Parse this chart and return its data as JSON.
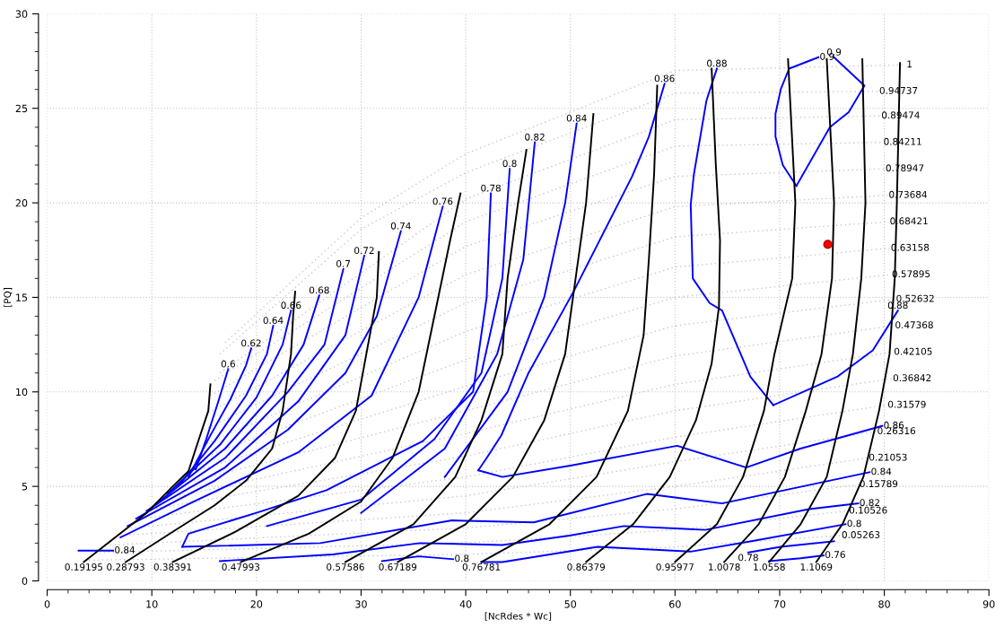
{
  "chart_data": {
    "type": "line",
    "xlabel": "[NcRdes * Wc]",
    "ylabel": "[PQ]",
    "xlim": [
      0,
      90
    ],
    "ylim": [
      0,
      30
    ],
    "xticks": [
      0,
      {
        "value": 2,
        "label": null
      },
      {
        "value": 4,
        "label": null
      },
      {
        "value": 6,
        "label": null
      },
      {
        "value": 8,
        "label": null
      },
      10,
      {
        "value": 12,
        "label": null
      },
      {
        "value": 14,
        "label": null
      },
      {
        "value": 16,
        "label": null
      },
      {
        "value": 18,
        "label": null
      },
      20,
      {
        "value": 22,
        "label": null
      },
      {
        "value": 24,
        "label": null
      },
      {
        "value": 26,
        "label": null
      },
      {
        "value": 28,
        "label": null
      },
      30,
      {
        "value": 32,
        "label": null
      },
      {
        "value": 34,
        "label": null
      },
      {
        "value": 36,
        "label": null
      },
      {
        "value": 38,
        "label": null
      },
      40,
      {
        "value": 42,
        "label": null
      },
      {
        "value": 44,
        "label": null
      },
      {
        "value": 46,
        "label": null
      },
      {
        "value": 48,
        "label": null
      },
      50,
      {
        "value": 52,
        "label": null
      },
      {
        "value": 54,
        "label": null
      },
      {
        "value": 56,
        "label": null
      },
      {
        "value": 58,
        "label": null
      },
      60,
      {
        "value": 62,
        "label": null
      },
      {
        "value": 64,
        "label": null
      },
      {
        "value": 66,
        "label": null
      },
      {
        "value": 68,
        "label": null
      },
      70,
      {
        "value": 72,
        "label": null
      },
      {
        "value": 74,
        "label": null
      },
      {
        "value": 76,
        "label": null
      },
      {
        "value": 78,
        "label": null
      },
      80,
      {
        "value": 82,
        "label": null
      },
      {
        "value": 84,
        "label": null
      },
      {
        "value": 86,
        "label": null
      },
      {
        "value": 88,
        "label": null
      },
      90
    ],
    "yticks": [
      0,
      {
        "value": 1,
        "label": null
      },
      {
        "value": 2,
        "label": null
      },
      {
        "value": 3,
        "label": null
      },
      {
        "value": 4,
        "label": null
      },
      5,
      {
        "value": 6,
        "label": null
      },
      {
        "value": 7,
        "label": null
      },
      {
        "value": 8,
        "label": null
      },
      {
        "value": 9,
        "label": null
      },
      10,
      {
        "value": 11,
        "label": null
      },
      {
        "value": 12,
        "label": null
      },
      {
        "value": 13,
        "label": null
      },
      {
        "value": 14,
        "label": null
      },
      15,
      {
        "value": 16,
        "label": null
      },
      {
        "value": 17,
        "label": null
      },
      {
        "value": 18,
        "label": null
      },
      {
        "value": 19,
        "label": null
      },
      20,
      {
        "value": 21,
        "label": null
      },
      {
        "value": 22,
        "label": null
      },
      {
        "value": 23,
        "label": null
      },
      {
        "value": 24,
        "label": null
      },
      25,
      {
        "value": 26,
        "label": null
      },
      {
        "value": 27,
        "label": null
      },
      {
        "value": 28,
        "label": null
      },
      {
        "value": 29,
        "label": null
      },
      30
    ],
    "grid": true,
    "marker": "none",
    "series": [
      {
        "name": "0.05263",
        "color": "#c8c8c8",
        "line_style": "dotted",
        "x": [
          4,
          40,
          60,
          75.8
        ],
        "values": [
          1.1,
          1.4,
          1.8,
          2.4
        ]
      },
      {
        "name": "0.10526",
        "color": "#c8c8c8",
        "line_style": "dotted",
        "x": [
          5,
          40,
          60,
          76.5
        ],
        "values": [
          1.5,
          2.0,
          2.7,
          3.7
        ]
      },
      {
        "name": "0.15789",
        "color": "#c8c8c8",
        "line_style": "dotted",
        "x": [
          6,
          40,
          60,
          77.5
        ],
        "values": [
          1.9,
          2.8,
          3.8,
          5.1
        ]
      },
      {
        "name": "0.21053",
        "color": "#c8c8c8",
        "line_style": "dotted",
        "x": [
          7,
          40,
          60,
          78.4
        ],
        "values": [
          2.4,
          3.6,
          5.0,
          6.5
        ]
      },
      {
        "name": "0.26316",
        "color": "#c8c8c8",
        "line_style": "dotted",
        "x": [
          8,
          40,
          60,
          79.2
        ],
        "values": [
          2.8,
          4.5,
          6.3,
          7.9
        ]
      },
      {
        "name": "0.31579",
        "color": "#c8c8c8",
        "line_style": "dotted",
        "x": [
          9,
          40,
          60,
          80.2
        ],
        "values": [
          3.3,
          5.5,
          7.6,
          9.3
        ]
      },
      {
        "name": "0.36842",
        "color": "#c8c8c8",
        "line_style": "dotted",
        "x": [
          10,
          40,
          60,
          80.7
        ],
        "values": [
          3.8,
          6.6,
          9.0,
          10.7
        ]
      },
      {
        "name": "0.42105",
        "color": "#c8c8c8",
        "line_style": "dotted",
        "x": [
          11,
          40,
          60,
          80.8
        ],
        "values": [
          4.3,
          7.8,
          10.4,
          12.1
        ]
      },
      {
        "name": "0.47368",
        "color": "#c8c8c8",
        "line_style": "dotted",
        "x": [
          12,
          40,
          60,
          80.9
        ],
        "values": [
          5.0,
          9.0,
          11.9,
          13.5
        ]
      },
      {
        "name": "0.52632",
        "color": "#c8c8c8",
        "line_style": "dotted",
        "x": [
          13,
          40,
          60,
          81
        ],
        "values": [
          5.6,
          10.3,
          13.5,
          14.9
        ]
      },
      {
        "name": "0.57895",
        "color": "#c8c8c8",
        "line_style": "dotted",
        "x": [
          13.8,
          40,
          60,
          80.6
        ],
        "values": [
          6.3,
          11.7,
          15.0,
          16.2
        ]
      },
      {
        "name": "0.63158",
        "color": "#c8c8c8",
        "line_style": "dotted",
        "x": [
          14.5,
          40,
          60,
          80.5
        ],
        "values": [
          7.1,
          13.2,
          16.6,
          17.6
        ]
      },
      {
        "name": "0.68421",
        "color": "#c8c8c8",
        "line_style": "dotted",
        "x": [
          15,
          40,
          60,
          80.4
        ],
        "values": [
          8.0,
          14.7,
          18.2,
          19.0
        ]
      },
      {
        "name": "0.73684",
        "color": "#c8c8c8",
        "line_style": "dotted",
        "x": [
          15.4,
          40,
          60,
          80.3
        ],
        "values": [
          8.9,
          16.2,
          19.8,
          20.4
        ]
      },
      {
        "name": "0.78947",
        "color": "#c8c8c8",
        "line_style": "dotted",
        "x": [
          15.6,
          40,
          60,
          80
        ],
        "values": [
          9.8,
          17.7,
          21.4,
          21.8
        ]
      },
      {
        "name": "0.84211",
        "color": "#c8c8c8",
        "line_style": "dotted",
        "x": [
          16,
          40,
          60,
          79.8
        ],
        "values": [
          10.6,
          19.0,
          23.0,
          23.2
        ]
      },
      {
        "name": "0.89474",
        "color": "#c8c8c8",
        "line_style": "dotted",
        "x": [
          16.5,
          40,
          60,
          79.6
        ],
        "values": [
          11.0,
          20.2,
          24.4,
          24.6
        ]
      },
      {
        "name": "0.94737",
        "color": "#c8c8c8",
        "line_style": "dotted",
        "x": [
          16.5,
          30,
          40,
          60,
          79.4
        ],
        "values": [
          12.0,
          18.6,
          21.6,
          25.8,
          25.9
        ]
      },
      {
        "name": "1",
        "color": "#c8c8c8",
        "line_style": "dotted",
        "x": [
          17,
          30,
          40,
          60,
          82
        ],
        "values": [
          12.6,
          19.2,
          22.6,
          27.0,
          27.3
        ]
      },
      {
        "name": "0.6",
        "color": "#0000ff",
        "x": [
          14.2,
          15.2,
          16.3,
          17.3
        ],
        "values": [
          5.9,
          7.5,
          9.4,
          11.2
        ]
      },
      {
        "name": "0.62",
        "color": "#0000ff",
        "x": [
          13.5,
          15.5,
          17.5,
          19,
          19.5
        ],
        "values": [
          5.5,
          7.6,
          9.6,
          11.4,
          12.3
        ]
      },
      {
        "name": "0.64",
        "color": "#0000ff",
        "x": [
          12.5,
          16,
          19,
          21,
          21.6
        ],
        "values": [
          5.0,
          7.4,
          9.8,
          12.0,
          13.5
        ]
      },
      {
        "name": "0.66",
        "color": "#0000ff",
        "x": [
          11.5,
          16.5,
          20,
          22.5,
          23.3
        ],
        "values": [
          4.6,
          7.2,
          9.7,
          12.5,
          14.3
        ]
      },
      {
        "name": "0.68",
        "color": "#0000ff",
        "x": [
          10.5,
          17,
          21.5,
          24.5,
          26
        ],
        "values": [
          4.1,
          7.0,
          9.8,
          12.5,
          15.1
        ]
      },
      {
        "name": "0.7",
        "color": "#0000ff",
        "x": [
          9.5,
          17,
          23,
          26.5,
          28.3
        ],
        "values": [
          3.7,
          6.5,
          10,
          12.5,
          16.5
        ]
      },
      {
        "name": "0.72",
        "color": "#0000ff",
        "x": [
          8.5,
          17,
          24,
          28.5,
          30.3
        ],
        "values": [
          3.3,
          6.0,
          9.5,
          13,
          17.2
        ]
      },
      {
        "name": "0.74",
        "color": "#0000ff",
        "x": [
          7.7,
          16,
          23,
          28.5,
          31.5,
          33.8
        ],
        "values": [
          2.9,
          5.3,
          8,
          11,
          14,
          18.5
        ]
      },
      {
        "name": "0.76",
        "color": "#0000ff",
        "x": [
          7.0,
          14,
          24,
          31,
          35.5,
          37.8
        ],
        "values": [
          2.3,
          4.2,
          6.8,
          9.8,
          15,
          19.8
        ]
      },
      {
        "name": "0.78",
        "color": "#0000ff",
        "x": [
          12.9,
          13.5,
          20,
          26.7,
          35.9,
          40.7,
          42,
          42.4
        ],
        "values": [
          1.8,
          2.5,
          3.6,
          4.8,
          7.4,
          10.0,
          15,
          20.5
        ]
      },
      {
        "name": "0.8",
        "color": "#0000ff",
        "x": [
          21,
          30,
          37,
          41.5,
          43.5,
          44.2
        ],
        "values": [
          2.9,
          4.3,
          7.5,
          11,
          16,
          21.8
        ]
      },
      {
        "name": "0.82",
        "color": "#0000ff",
        "x": [
          30,
          38,
          43,
          45.5,
          46.6
        ],
        "values": [
          3.6,
          7,
          12,
          17,
          23.2
        ]
      },
      {
        "name": "0.84",
        "color": "#0000ff",
        "x": [
          38,
          44,
          47.5,
          49.5,
          50.6
        ],
        "values": [
          5.5,
          10,
          15,
          20,
          24.2
        ]
      },
      {
        "name": "0.86",
        "color": "#0000ff",
        "x": [
          41.2,
          42,
          43.4,
          46,
          50.3,
          55.9,
          57.5,
          59
        ],
        "values": [
          5.85,
          6.5,
          7.7,
          11,
          15.3,
          21.4,
          23.5,
          26.3
        ]
      },
      {
        "name": "0.86",
        "color": "#0000ff",
        "x": [
          41.2,
          43.5,
          50,
          60.2,
          66.8,
          72,
          79.8
        ],
        "values": [
          5.85,
          5.5,
          6.1,
          7.15,
          6.0,
          7.0,
          8.2
        ]
      },
      {
        "name": "0.88",
        "color": "#0000ff",
        "x": [
          69.4,
          75.5,
          78.9,
          81.3
        ],
        "values": [
          9.3,
          10.8,
          12.2,
          14.3
        ]
      },
      {
        "name": "0.88",
        "color": "#0000ff",
        "x": [
          69.4,
          67.2,
          64.5,
          63.3,
          61.7,
          61.5,
          61.8,
          63.0,
          64.0
        ],
        "values": [
          9.3,
          10.8,
          14.3,
          14.7,
          16.0,
          19.9,
          21.5,
          25.4,
          27.1
        ]
      },
      {
        "name": "0.9",
        "color": "#0000ff",
        "x": [
          71.6,
          70.3,
          69.6,
          69.6,
          70.1,
          70.9,
          73.7
        ],
        "values": [
          20.9,
          22.0,
          23.5,
          24.7,
          26.0,
          27.1,
          27.7
        ]
      },
      {
        "name": "0.9",
        "color": "#0000ff",
        "x": [
          71.6,
          74.8,
          76.6,
          78.1,
          75.2
        ],
        "values": [
          20.9,
          24.0,
          24.8,
          26.2,
          27.7
        ]
      },
      {
        "name": "0.84",
        "color": "#0000ff",
        "x": [
          12.9,
          26.1,
          38.7,
          46.5,
          57.3,
          64.5,
          78.6
        ],
        "values": [
          1.8,
          2.0,
          3.2,
          3.1,
          4.6,
          4.1,
          5.75
        ]
      },
      {
        "name": "0.82",
        "color": "#0000ff",
        "x": [
          16.5,
          27.3,
          35.6,
          43.5,
          49.9,
          55.1,
          62.9,
          72.8,
          77.5
        ],
        "values": [
          1.05,
          1.4,
          2.0,
          1.9,
          2.4,
          2.9,
          2.7,
          3.8,
          4.1
        ]
      },
      {
        "name": "0.8",
        "color": "#0000ff",
        "x": [
          41.5,
          43.5,
          52.6,
          61.5,
          67.3,
          76.3
        ],
        "values": [
          1.0,
          1.0,
          1.8,
          1.55,
          2.1,
          3.0
        ]
      },
      {
        "name": "0.78",
        "color": "#0000ff",
        "x": [
          75.2,
          70.1,
          67.0
        ],
        "values": [
          2.1,
          1.8,
          1.5
        ]
      },
      {
        "name": "0.76",
        "color": "#0000ff",
        "x": [
          69,
          72,
          74.2
        ],
        "values": [
          1.05,
          1.2,
          1.35
        ]
      },
      {
        "name": "0.8",
        "color": "#0000ff",
        "x": [
          32,
          35.5,
          38.8
        ],
        "values": [
          1.05,
          1.3,
          1.15
        ]
      },
      {
        "name": "0.84",
        "color": "#0000ff",
        "x": [
          3.0,
          6.3
        ],
        "values": [
          1.6,
          1.6
        ]
      },
      {
        "name": "0.19195",
        "color": "#000000",
        "x": [
          15.6,
          15.4,
          14.5,
          13.5,
          12,
          9.5,
          6.5,
          3.5
        ],
        "values": [
          10.4,
          9.0,
          7.5,
          5.8,
          5.0,
          3.6,
          2.3,
          1.0
        ]
      },
      {
        "name": "0.28793",
        "color": "#000000",
        "x": [
          23.7,
          23.5,
          23.3,
          22.5,
          21.5,
          19,
          16,
          12,
          7.5
        ],
        "values": [
          15.3,
          14,
          12,
          9,
          7.0,
          5.3,
          4.0,
          2.6,
          1.0
        ]
      },
      {
        "name": "0.38391",
        "color": "#000000",
        "x": [
          31.7,
          31.5,
          30.5,
          29.5,
          27.5,
          24,
          18,
          12
        ],
        "values": [
          17.4,
          15,
          12,
          9,
          6.5,
          4.5,
          2.6,
          1.0
        ]
      },
      {
        "name": "0.47993",
        "color": "#000000",
        "x": [
          39.5,
          38.5,
          37,
          35.5,
          33,
          30,
          25,
          18.5
        ],
        "values": [
          20.5,
          18,
          14,
          10,
          6.5,
          4.2,
          2.5,
          1.0
        ]
      },
      {
        "name": "0.57586",
        "color": "#000000",
        "x": [
          45.8,
          45,
          44,
          43.5,
          41.5,
          39,
          35,
          28.5
        ],
        "values": [
          22.8,
          20,
          16,
          12,
          8.5,
          5.5,
          3,
          1.0
        ]
      },
      {
        "name": "0.67189",
        "color": "#000000",
        "x": [
          52.2,
          51.5,
          50.5,
          49.5,
          47.5,
          44.5,
          40,
          33.5
        ],
        "values": [
          24.7,
          20,
          16,
          12,
          8.5,
          5.5,
          3,
          1.0
        ]
      },
      {
        "name": "0.76781",
        "color": "#000000",
        "x": [
          58.3,
          58,
          57.5,
          57,
          55.5,
          52.5,
          48,
          41.5
        ],
        "values": [
          26.2,
          21.5,
          17,
          13,
          9,
          5.5,
          3,
          1.0
        ]
      },
      {
        "name": "0.86379",
        "color": "#000000",
        "x": [
          63.5,
          63.9,
          64.3,
          64.2,
          63.5,
          62,
          59.5,
          56,
          51.5
        ],
        "values": [
          27.1,
          22,
          18,
          14.5,
          11.5,
          8.5,
          5.5,
          3,
          1.0
        ]
      },
      {
        "name": "0.95977",
        "color": "#000000",
        "x": [
          70.8,
          71.5,
          71.2,
          69.5,
          68.5,
          66.5,
          64,
          60
        ],
        "values": [
          27.6,
          20,
          16,
          12,
          9,
          5.5,
          3,
          1.0
        ]
      },
      {
        "name": "1.0078",
        "color": "#000000",
        "x": [
          74.5,
          75.2,
          75,
          74,
          72.5,
          70.5,
          68,
          64.7
        ],
        "values": [
          27.6,
          20,
          16,
          12,
          9,
          5.5,
          3,
          1.0
        ]
      },
      {
        "name": "1.0558",
        "color": "#000000",
        "x": [
          77.9,
          78.2,
          77.8,
          77,
          76,
          74.5,
          72,
          69
        ],
        "values": [
          27.6,
          20,
          16,
          12,
          9,
          5.5,
          3,
          1.0
        ]
      },
      {
        "name": "1.1069",
        "color": "#000000",
        "x": [
          81.5,
          81.2,
          81,
          80.5,
          79.5,
          78,
          76,
          73.5
        ],
        "values": [
          27.4,
          20,
          16,
          12,
          9,
          5.5,
          3,
          1.0
        ]
      },
      {
        "type": "scatter",
        "color": "#ff0000",
        "marker": "circle",
        "x": [
          74.6
        ],
        "values": [
          17.8
        ]
      }
    ]
  }
}
